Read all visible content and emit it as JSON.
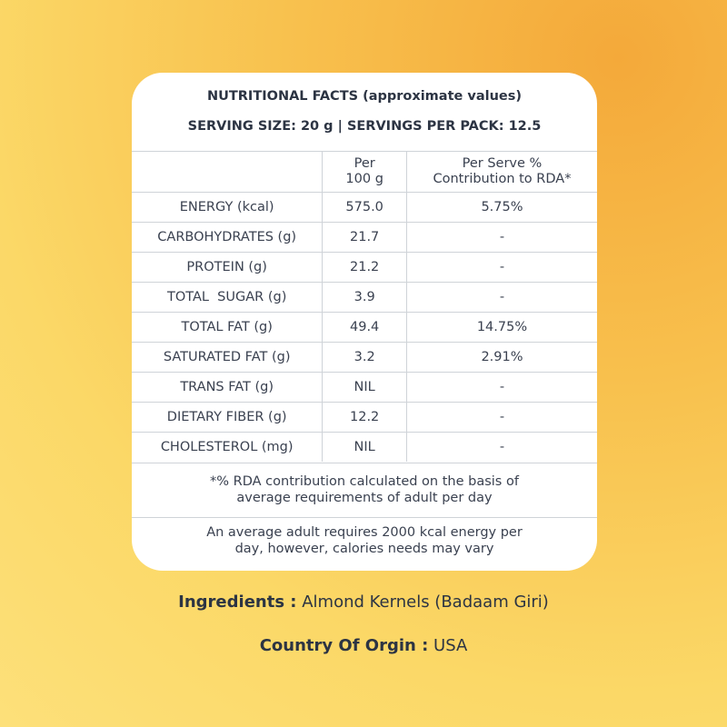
{
  "card": {
    "title": "NUTRITIONAL FACTS (approximate values)",
    "serving": "SERVING SIZE: 20 g | SERVINGS PER PACK: 12.5",
    "table": {
      "headers": {
        "col2_line1": "Per",
        "col2_line2": "100 g",
        "col3_line1": "Per Serve %",
        "col3_line2": "Contribution to RDA*"
      },
      "rows": [
        {
          "nutrient": "ENERGY (kcal)",
          "per100": "575.0",
          "rda": "5.75%"
        },
        {
          "nutrient": "CARBOHYDRATES (g)",
          "per100": "21.7",
          "rda": "-"
        },
        {
          "nutrient": "PROTEIN (g)",
          "per100": "21.2",
          "rda": "-"
        },
        {
          "nutrient": "TOTAL  SUGAR (g)",
          "per100": "3.9",
          "rda": "-"
        },
        {
          "nutrient": "TOTAL FAT (g)",
          "per100": "49.4",
          "rda": "14.75%"
        },
        {
          "nutrient": "SATURATED FAT (g)",
          "per100": "3.2",
          "rda": "2.91%"
        },
        {
          "nutrient": "TRANS FAT (g)",
          "per100": "NIL",
          "rda": "-"
        },
        {
          "nutrient": "DIETARY FIBER (g)",
          "per100": "12.2",
          "rda": "-"
        },
        {
          "nutrient": "CHOLESTEROL (mg)",
          "per100": "NIL",
          "rda": "-"
        }
      ]
    },
    "note1_line1": "*% RDA contribution calculated on the basis of",
    "note1_line2": "average requirements of adult per day",
    "note2_line1": "An average adult requires 2000 kcal energy per",
    "note2_line2": "day, however, calories needs may vary"
  },
  "ingredients": {
    "label": "Ingredients :",
    "value": "Almond Kernels (Badaam Giri)"
  },
  "origin": {
    "label": "Country Of Orgin :",
    "value": "USA"
  },
  "colors": {
    "background_top_right": "#f4a93a",
    "background_bottom": "#fde07a",
    "card": "#ffffff",
    "text": "#2c3443"
  }
}
